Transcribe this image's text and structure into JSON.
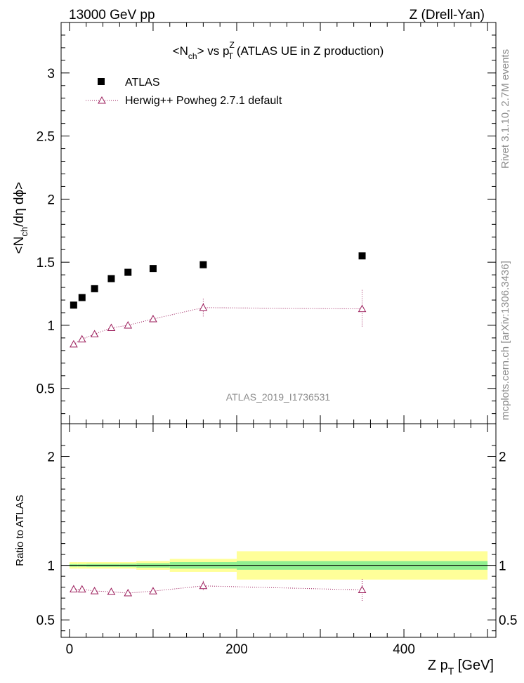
{
  "header": {
    "left": "13000 GeV pp",
    "right": "Z (Drell-Yan)"
  },
  "side_labels": {
    "rivet": "Rivet 3.1.10,  2.7M events",
    "mcplots": "mcplots.cern.ch [arXiv:1306.3436]"
  },
  "watermark": "ATLAS_2019_I1736531",
  "chart_data": [
    {
      "type": "scatter",
      "title": {
        "part1": "<N",
        "sub1": "ch",
        "part2": "> vs p",
        "sup2": "Z",
        "sub2": "T",
        "part3": " (ATLAS UE in Z production)"
      },
      "ylabel": {
        "a": "<N",
        "sub": "ch",
        "b": "/dη dϕ>"
      },
      "xlim": [
        -10,
        510
      ],
      "ylim": [
        0.22,
        3.4
      ],
      "yticks": [
        0.5,
        1,
        1.5,
        2,
        2.5,
        3
      ],
      "ytick_labels": [
        "0.5",
        "1",
        "1.5",
        "2",
        "2.5",
        "3"
      ],
      "legend_position": "top-left",
      "series": [
        {
          "name": "ATLAS",
          "marker": "square",
          "color": "#000000",
          "x": [
            5,
            15,
            30,
            50,
            70,
            100,
            160,
            350
          ],
          "y": [
            1.16,
            1.22,
            1.29,
            1.37,
            1.42,
            1.45,
            1.48,
            1.55
          ]
        },
        {
          "name": "Herwig++ Powheg 2.7.1 default",
          "marker": "triangle",
          "color": "#9b1b5a",
          "x": [
            5,
            15,
            30,
            50,
            70,
            100,
            160,
            350
          ],
          "y": [
            0.85,
            0.89,
            0.93,
            0.98,
            1.0,
            1.05,
            1.14,
            1.13
          ],
          "err": [
            0.01,
            0.01,
            0.01,
            0.01,
            0.01,
            0.02,
            0.07,
            0.15
          ]
        }
      ]
    },
    {
      "type": "scatter",
      "ylabel": "Ratio to ATLAS",
      "xlabel": {
        "a": "Z p",
        "sub": "T",
        "b": " [GeV]"
      },
      "xlim": [
        -10,
        510
      ],
      "ylim": [
        0.34,
        2.3
      ],
      "xticks": [
        0,
        200,
        400
      ],
      "xtick_labels": [
        "0",
        "200",
        "400"
      ],
      "yticks": [
        0.5,
        1,
        2
      ],
      "ytick_labels": [
        "0.5",
        "1",
        "2"
      ],
      "bands": {
        "edges": [
          0,
          10,
          20,
          40,
          60,
          80,
          120,
          200,
          500
        ],
        "stat_half": [
          0.012,
          0.012,
          0.014,
          0.014,
          0.016,
          0.02,
          0.03,
          0.04
        ],
        "total_half": [
          0.03,
          0.03,
          0.03,
          0.03,
          0.03,
          0.04,
          0.06,
          0.13
        ],
        "stat_color": "#90f090",
        "total_color": "#ffff99"
      },
      "series": [
        {
          "name": "Herwig++ Powheg 2.7.1 default",
          "color": "#9b1b5a",
          "x": [
            5,
            15,
            30,
            50,
            70,
            100,
            160,
            350
          ],
          "y": [
            0.782,
            0.781,
            0.765,
            0.758,
            0.746,
            0.764,
            0.812,
            0.775
          ],
          "err": [
            0.01,
            0.01,
            0.01,
            0.01,
            0.01,
            0.015,
            0.045,
            0.1
          ]
        }
      ]
    }
  ]
}
